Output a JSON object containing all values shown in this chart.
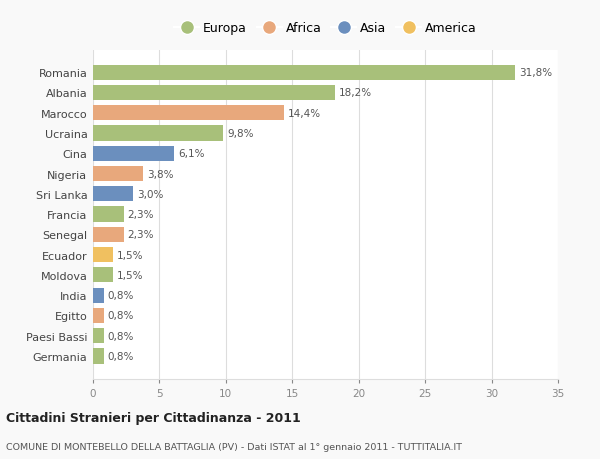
{
  "categories": [
    "Romania",
    "Albania",
    "Marocco",
    "Ucraina",
    "Cina",
    "Nigeria",
    "Sri Lanka",
    "Francia",
    "Senegal",
    "Ecuador",
    "Moldova",
    "India",
    "Egitto",
    "Paesi Bassi",
    "Germania"
  ],
  "values": [
    31.8,
    18.2,
    14.4,
    9.8,
    6.1,
    3.8,
    3.0,
    2.3,
    2.3,
    1.5,
    1.5,
    0.8,
    0.8,
    0.8,
    0.8
  ],
  "labels": [
    "31,8%",
    "18,2%",
    "14,4%",
    "9,8%",
    "6,1%",
    "3,8%",
    "3,0%",
    "2,3%",
    "2,3%",
    "1,5%",
    "1,5%",
    "0,8%",
    "0,8%",
    "0,8%",
    "0,8%"
  ],
  "colors": [
    "#a8c07a",
    "#a8c07a",
    "#e8a87c",
    "#a8c07a",
    "#6b8fbe",
    "#e8a87c",
    "#6b8fbe",
    "#a8c07a",
    "#e8a87c",
    "#f0c060",
    "#a8c07a",
    "#6b8fbe",
    "#e8a87c",
    "#a8c07a",
    "#a8c07a"
  ],
  "legend_labels": [
    "Europa",
    "Africa",
    "Asia",
    "America"
  ],
  "legend_colors": [
    "#a8c07a",
    "#e8a87c",
    "#6b8fbe",
    "#f0c060"
  ],
  "title": "Cittadini Stranieri per Cittadinanza - 2011",
  "subtitle": "COMUNE DI MONTEBELLO DELLA BATTAGLIA (PV) - Dati ISTAT al 1° gennaio 2011 - TUTTITALIA.IT",
  "xlim": [
    0,
    35
  ],
  "xticks": [
    0,
    5,
    10,
    15,
    20,
    25,
    30,
    35
  ],
  "background_color": "#f9f9f9",
  "bar_background": "#ffffff",
  "grid_color": "#dddddd"
}
